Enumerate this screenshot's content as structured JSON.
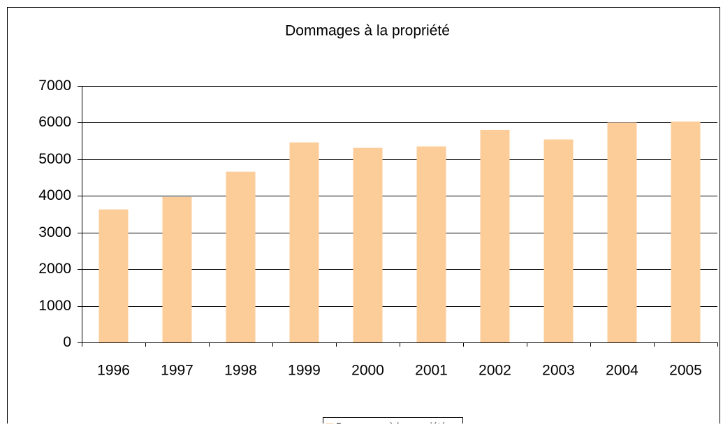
{
  "chart_data": {
    "type": "bar",
    "title": "Dommages à la propriété",
    "categories": [
      "1996",
      "1997",
      "1998",
      "1999",
      "2000",
      "2001",
      "2002",
      "2003",
      "2004",
      "2005"
    ],
    "series": [
      {
        "name": "Dommages à la propriété",
        "color": "#fccc99",
        "values": [
          3630,
          3970,
          4660,
          5460,
          5310,
          5350,
          5800,
          5540,
          6000,
          6030
        ]
      }
    ],
    "ylim": [
      0,
      7000
    ],
    "yticks": [
      0,
      1000,
      2000,
      3000,
      4000,
      5000,
      6000,
      7000
    ],
    "grid": true,
    "legend": "bottom"
  }
}
